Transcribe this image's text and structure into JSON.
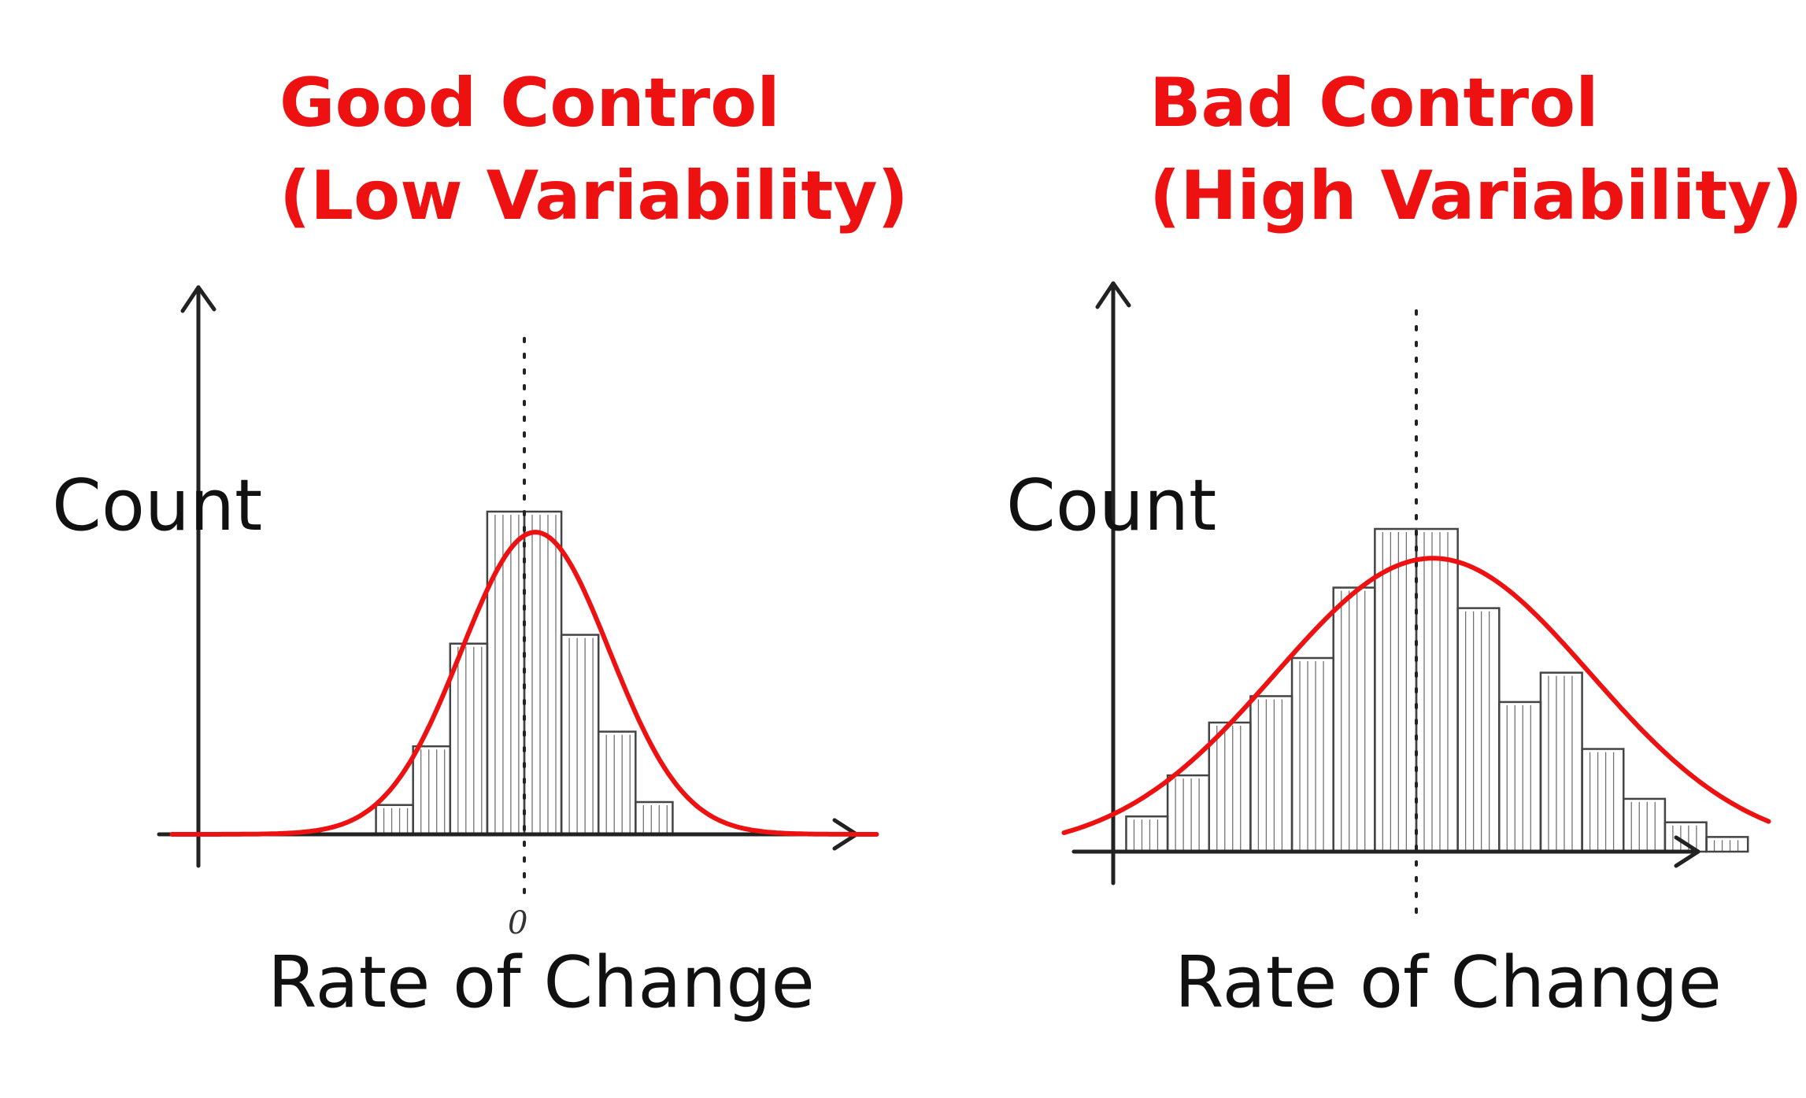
{
  "colors": {
    "title": "#ee1111",
    "curve": "#ee1111",
    "ink": "#222222",
    "bars": "#444444",
    "text": "#111111"
  },
  "chart_data": [
    {
      "type": "bar",
      "title_line1": "Good Control",
      "title_line2": "(Low Variability)",
      "xlabel": "Rate of Change",
      "ylabel": "Count",
      "x_tick_label": "0",
      "axis_ticks_shown": false,
      "grid": false,
      "mean": 0,
      "bin_width": 1,
      "xlim": [
        -9.5,
        9.5
      ],
      "ylim": [
        0,
        11
      ],
      "bins": [
        {
          "x": -3.5,
          "count": 1
        },
        {
          "x": -2.5,
          "count": 3
        },
        {
          "x": -1.5,
          "count": 6.5
        },
        {
          "x": -0.5,
          "count": 11
        },
        {
          "x": 0.5,
          "count": 11
        },
        {
          "x": 1.5,
          "count": 6.8
        },
        {
          "x": 2.5,
          "count": 3.5
        },
        {
          "x": 3.5,
          "count": 1.1
        }
      ],
      "curve": {
        "type": "normal",
        "mean": 0.3,
        "sd": 2.0,
        "peak": 10.3
      }
    },
    {
      "type": "bar",
      "title_line1": "Bad Control",
      "title_line2": "(High Variability)",
      "xlabel": "Rate of Change",
      "ylabel": "Count",
      "axis_ticks_shown": false,
      "grid": false,
      "mean": 0,
      "bin_width": 1,
      "xlim": [
        -8.5,
        8.5
      ],
      "ylim": [
        0,
        11
      ],
      "bins": [
        {
          "x": -6.5,
          "count": 1.2
        },
        {
          "x": -5.5,
          "count": 2.6
        },
        {
          "x": -4.5,
          "count": 4.4
        },
        {
          "x": -3.5,
          "count": 5.3
        },
        {
          "x": -2.5,
          "count": 6.6
        },
        {
          "x": -1.5,
          "count": 9.0
        },
        {
          "x": -0.5,
          "count": 11
        },
        {
          "x": 0.5,
          "count": 11
        },
        {
          "x": 1.5,
          "count": 8.3
        },
        {
          "x": 2.5,
          "count": 5.1
        },
        {
          "x": 3.5,
          "count": 6.1
        },
        {
          "x": 4.5,
          "count": 3.5
        },
        {
          "x": 5.5,
          "count": 1.8
        },
        {
          "x": 6.5,
          "count": 1.0
        },
        {
          "x": 7.5,
          "count": 0.5
        }
      ],
      "curve": {
        "type": "normal",
        "mean": 0.4,
        "sd": 3.8,
        "peak": 10.0
      }
    }
  ]
}
